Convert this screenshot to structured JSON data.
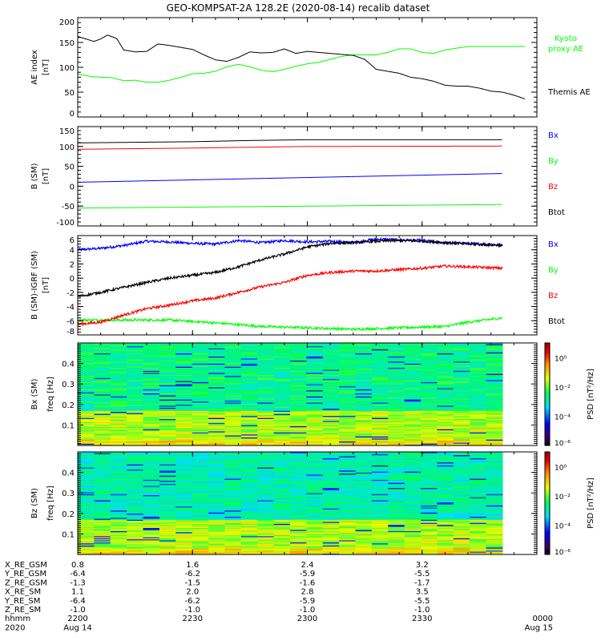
{
  "title": "GEO-KOMPSAT-2A 128.2E (2020-08-14) recalib dataset",
  "time_axis": {
    "range_hours": [
      0,
      2
    ],
    "major_ticks_hours": [
      0,
      0.5,
      1.0,
      1.5,
      2.0
    ],
    "minor_ticks_per_major": 5
  },
  "ephemeris": {
    "row_labels": [
      "X_RE_GSM",
      "Y_RE_GSM",
      "Z_RE_GSM",
      "X_RE_SM",
      "Y_RE_SM",
      "Z_RE_SM",
      "hhmm",
      "2020"
    ],
    "columns": [
      {
        "values": [
          "0.8",
          "-6.4",
          "-1.3",
          "1.1",
          "-6.4",
          "-1.0",
          "2200",
          "Aug 14"
        ]
      },
      {
        "values": [
          "1.6",
          "-6.2",
          "-1.5",
          "2.0",
          "-6.2",
          "-1.0",
          "2230",
          ""
        ]
      },
      {
        "values": [
          "2.4",
          "-5.9",
          "-1.6",
          "2.8",
          "-5.9",
          "-1.0",
          "2300",
          ""
        ]
      },
      {
        "values": [
          "3.2",
          "-5.5",
          "-1.7",
          "3.5",
          "-5.5",
          "-1.0",
          "2330",
          ""
        ]
      },
      {
        "values": [
          "",
          "",
          "",
          "",
          "",
          "",
          "0000",
          "Aug 15"
        ]
      }
    ]
  },
  "colors": {
    "black": "#000000",
    "blue": "#0000ff",
    "green": "#00ff00",
    "red": "#ff0000"
  },
  "chart_data": [
    {
      "type": "line",
      "title": "AE index",
      "ylabel": "AE index",
      "yunits": "[nT]",
      "ylim": [
        0,
        200
      ],
      "yticks": [
        "0",
        "50",
        "100",
        "150",
        "200"
      ],
      "ytick_values": [
        0,
        50,
        100,
        150,
        200
      ],
      "series": [
        {
          "name": "Kyoto proxy AE",
          "color": "#00ff00",
          "x": [
            0,
            0.05,
            0.1,
            0.15,
            0.2,
            0.25,
            0.3,
            0.35,
            0.4,
            0.45,
            0.5,
            0.55,
            0.6,
            0.65,
            0.7,
            0.75,
            0.8,
            0.85,
            0.9,
            0.95,
            1.0,
            1.05,
            1.1,
            1.15,
            1.2,
            1.25,
            1.3,
            1.35,
            1.4,
            1.45,
            1.5,
            1.55,
            1.6,
            1.7,
            1.8,
            1.9,
            1.95
          ],
          "values": [
            87,
            82,
            80,
            79,
            73,
            74,
            70,
            70,
            74,
            80,
            87,
            88,
            92,
            101,
            106,
            101,
            94,
            91,
            96,
            102,
            107,
            110,
            116,
            122,
            125,
            125,
            125,
            130,
            137,
            137,
            130,
            128,
            135,
            142,
            142,
            142,
            142
          ]
        },
        {
          "name": "Themis AE",
          "color": "#000000",
          "x": [
            0,
            0.03,
            0.07,
            0.1,
            0.13,
            0.17,
            0.2,
            0.25,
            0.3,
            0.35,
            0.4,
            0.45,
            0.5,
            0.55,
            0.6,
            0.65,
            0.7,
            0.75,
            0.8,
            0.85,
            0.9,
            0.95,
            1.0,
            1.05,
            1.1,
            1.15,
            1.2,
            1.25,
            1.3,
            1.35,
            1.4,
            1.45,
            1.5,
            1.55,
            1.6,
            1.65,
            1.7,
            1.75,
            1.8,
            1.85,
            1.9,
            1.95
          ],
          "values": [
            162,
            158,
            152,
            157,
            165,
            158,
            135,
            131,
            132,
            147,
            144,
            140,
            136,
            125,
            115,
            112,
            120,
            131,
            129,
            130,
            137,
            128,
            132,
            130,
            128,
            126,
            124,
            116,
            96,
            92,
            88,
            80,
            77,
            72,
            64,
            62,
            62,
            58,
            52,
            50,
            44,
            36
          ]
        }
      ]
    },
    {
      "type": "line",
      "title": "B (SM)",
      "ylabel": "B (SM)",
      "yunits": "[nT]",
      "ylim": [
        -100,
        150
      ],
      "yticks": [
        "-100",
        "-50",
        "0",
        "50",
        "100",
        "150"
      ],
      "ytick_values": [
        -100,
        -50,
        0,
        50,
        100,
        150
      ],
      "series": [
        {
          "name": "Bx",
          "color": "#0000ff",
          "x": [
            0,
            1.85
          ],
          "values": [
            10,
            32
          ]
        },
        {
          "name": "By",
          "color": "#00ff00",
          "x": [
            0,
            1.85
          ],
          "values": [
            -55,
            -46
          ]
        },
        {
          "name": "Bz",
          "color": "#ff0000",
          "x": [
            0,
            0.5,
            0.75,
            1.0,
            1.85
          ],
          "values": [
            93,
            96,
            98,
            100,
            101
          ]
        },
        {
          "name": "Btot",
          "color": "#000000",
          "x": [
            0,
            0.5,
            0.75,
            1.0,
            1.85
          ],
          "values": [
            109,
            112,
            115,
            117,
            117
          ]
        }
      ]
    },
    {
      "type": "line",
      "title": "B (SM)-IGRF (SM)",
      "ylabel": "B (SM)-IGRF (SM)",
      "yunits": "[nT]",
      "ylim": [
        -8,
        6
      ],
      "yticks": [
        "-8",
        "-6",
        "-4",
        "-2",
        "0",
        "2",
        "4",
        "6"
      ],
      "ytick_values": [
        -8,
        -6,
        -4,
        -2,
        0,
        2,
        4,
        6
      ],
      "series": [
        {
          "name": "Bx",
          "color": "#0000ff",
          "x": [
            0,
            0.1,
            0.2,
            0.3,
            0.4,
            0.5,
            0.6,
            0.7,
            0.8,
            0.9,
            1.0,
            1.1,
            1.2,
            1.3,
            1.4,
            1.5,
            1.6,
            1.7,
            1.85
          ],
          "values": [
            4.0,
            4.2,
            4.6,
            5.2,
            5.1,
            4.9,
            4.8,
            5.3,
            5.0,
            5.3,
            5.1,
            5.2,
            5.0,
            5.5,
            5.4,
            5.3,
            5.0,
            4.9,
            4.7
          ]
        },
        {
          "name": "By",
          "color": "#00ff00",
          "x": [
            0,
            0.2,
            0.4,
            0.6,
            0.8,
            1.0,
            1.2,
            1.4,
            1.6,
            1.7,
            1.85
          ],
          "values": [
            -5.9,
            -5.9,
            -5.9,
            -6.3,
            -6.8,
            -7.0,
            -7.2,
            -7.0,
            -6.8,
            -6.2,
            -5.6
          ]
        },
        {
          "name": "Bz",
          "color": "#ff0000",
          "x": [
            0,
            0.1,
            0.2,
            0.3,
            0.4,
            0.5,
            0.6,
            0.7,
            0.8,
            0.9,
            1.0,
            1.1,
            1.2,
            1.3,
            1.4,
            1.5,
            1.6,
            1.7,
            1.85
          ],
          "values": [
            -6.5,
            -6.2,
            -5.2,
            -4.3,
            -3.8,
            -3.2,
            -2.8,
            -2.0,
            -1.2,
            -0.6,
            0.4,
            0.8,
            1.0,
            1.0,
            1.2,
            1.4,
            1.7,
            1.6,
            1.4
          ]
        },
        {
          "name": "Btot",
          "color": "#000000",
          "x": [
            0,
            0.1,
            0.2,
            0.3,
            0.4,
            0.5,
            0.6,
            0.7,
            0.8,
            0.9,
            1.0,
            1.1,
            1.2,
            1.3,
            1.4,
            1.5,
            1.6,
            1.7,
            1.85
          ],
          "values": [
            -2.6,
            -2.0,
            -1.3,
            -0.6,
            0.0,
            0.4,
            0.8,
            1.6,
            2.6,
            3.4,
            4.4,
            4.9,
            5.0,
            5.2,
            5.3,
            5.2,
            5.0,
            4.8,
            4.6
          ]
        }
      ]
    },
    {
      "type": "heatmap",
      "title": "Bx (SM)",
      "ylabel": "Bx (SM)",
      "ylabel2": "freq [Hz]",
      "ylim": [
        0,
        0.5
      ],
      "yticks": [
        "0.1",
        "0.2",
        "0.3",
        "0.4"
      ],
      "ytick_values": [
        0.1,
        0.2,
        0.3,
        0.4
      ],
      "x_end_hours": 1.85,
      "colorbar": {
        "label": "PSD [nT²/Hz]",
        "ticks": [
          "10⁰",
          "10⁻²",
          "10⁻⁴",
          "10⁻⁶"
        ],
        "log_range": [
          -6,
          1
        ]
      },
      "description": "PSD mostly 1e-3 to 1e-2 (green/cyan) above 0.18 Hz, 1e-2 to 1e-1 (yellow/orange) below 0.18 Hz"
    },
    {
      "type": "heatmap",
      "title": "Bz (SM)",
      "ylabel": "Bz (SM)",
      "ylabel2": "freq [Hz]",
      "ylim": [
        0,
        0.5
      ],
      "yticks": [
        "0.1",
        "0.2",
        "0.3",
        "0.4"
      ],
      "ytick_values": [
        0.1,
        0.2,
        0.3,
        0.4
      ],
      "x_end_hours": 1.85,
      "colorbar": {
        "label": "PSD [nT²/Hz]",
        "ticks": [
          "10⁰",
          "10⁻²",
          "10⁻⁴",
          "10⁻⁶"
        ],
        "log_range": [
          -6,
          1
        ]
      },
      "description": "PSD mostly 1e-3 (cyan/green) above 0.18 Hz, 1e-2 (yellow) below 0.18 Hz"
    }
  ]
}
